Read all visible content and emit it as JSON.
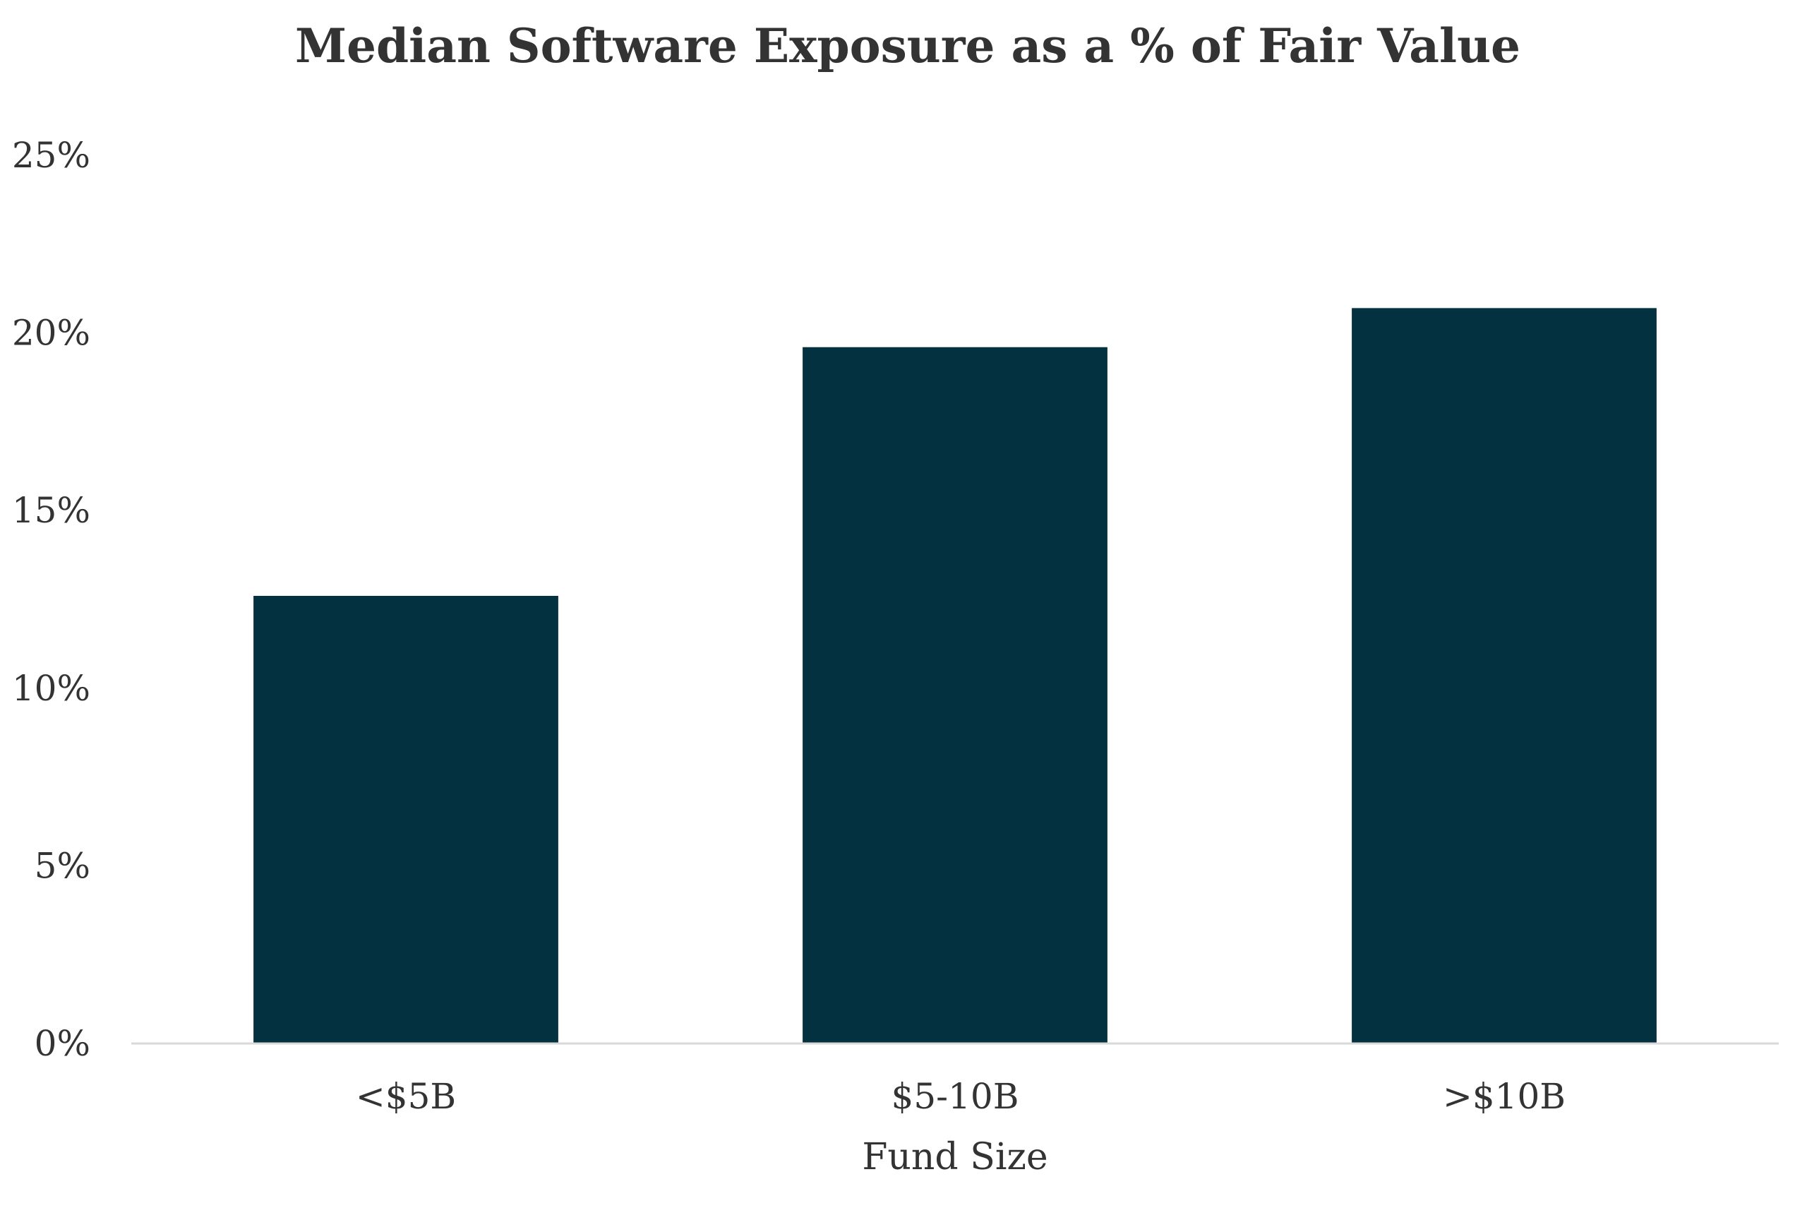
{
  "chart_data": {
    "type": "bar",
    "title": "Median Software Exposure as a % of Fair Value",
    "xlabel": "Fund Size",
    "ylabel": "",
    "categories": [
      "<$5B",
      "$5-10B",
      ">$10B"
    ],
    "values": [
      12.6,
      19.6,
      20.7
    ],
    "ylim": [
      0,
      25
    ],
    "yticks": [
      "0%",
      "5%",
      "10%",
      "15%",
      "20%",
      "25%"
    ],
    "ytick_values": [
      0,
      5,
      10,
      15,
      20,
      25
    ],
    "grid": false,
    "legend": "none",
    "colors": {
      "bar": "#03313F",
      "axis": "#d9d9d9",
      "text": "#333333"
    }
  }
}
